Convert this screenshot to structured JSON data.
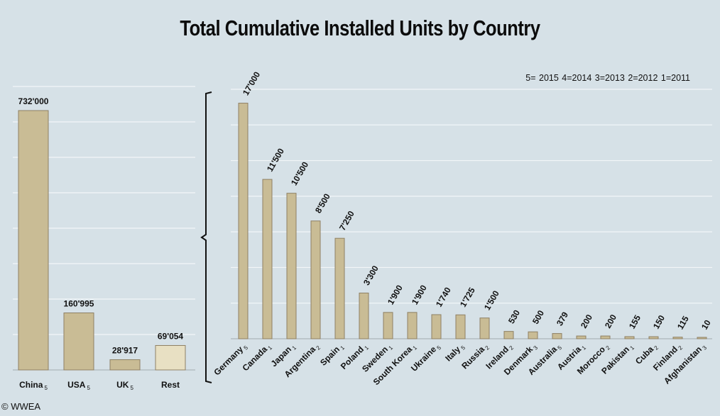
{
  "title": "Total Cumulative Installed Units by Country",
  "legend_text": "5= 2015  4=2014  3=2013  2=2012  1=2011",
  "copyright": "© WWEA",
  "colors": {
    "background": "#d6e1e7",
    "bar": "#c9bc95",
    "bar_border": "#8e8064",
    "bar_rest": "#e8e0c3",
    "gridline": "#f2f6f8"
  },
  "chart_data": [
    {
      "type": "bar",
      "title": "",
      "xlabel": "",
      "ylabel": "",
      "ylim": [
        0,
        800000
      ],
      "grid": true,
      "categories": [
        {
          "name": "China",
          "sub": "5"
        },
        {
          "name": "USA",
          "sub": "5"
        },
        {
          "name": "UK",
          "sub": "5"
        },
        {
          "name": "Rest",
          "sub": ""
        }
      ],
      "values": [
        732000,
        160995,
        28917,
        69054
      ],
      "value_labels": [
        "732'000",
        "160'995",
        "28'917",
        "69'054"
      ]
    },
    {
      "type": "bar",
      "title": "",
      "xlabel": "",
      "ylabel": "",
      "ylim": [
        0,
        18000
      ],
      "grid": true,
      "categories": [
        {
          "name": "Germany",
          "sub": "5"
        },
        {
          "name": "Canada",
          "sub": "1"
        },
        {
          "name": "Japan",
          "sub": "1"
        },
        {
          "name": "Argentina",
          "sub": "2"
        },
        {
          "name": "Spain",
          "sub": "1"
        },
        {
          "name": "Poland",
          "sub": "1"
        },
        {
          "name": "Sweden",
          "sub": "1"
        },
        {
          "name": "South Korea",
          "sub": "1"
        },
        {
          "name": "Ukraine",
          "sub": "5"
        },
        {
          "name": "Italy",
          "sub": "5"
        },
        {
          "name": "Russia",
          "sub": "2"
        },
        {
          "name": "Ireland",
          "sub": "2"
        },
        {
          "name": "Denmark",
          "sub": "3"
        },
        {
          "name": "Australia",
          "sub": "5"
        },
        {
          "name": "Austria",
          "sub": "1"
        },
        {
          "name": "Morocco",
          "sub": "2"
        },
        {
          "name": "Pakistan",
          "sub": "1"
        },
        {
          "name": "Cuba",
          "sub": "2"
        },
        {
          "name": "Finland",
          "sub": "2"
        },
        {
          "name": "Afghanistan",
          "sub": "3"
        }
      ],
      "values": [
        17000,
        11500,
        10500,
        8500,
        7250,
        3300,
        1900,
        1900,
        1740,
        1725,
        1500,
        530,
        500,
        379,
        200,
        200,
        155,
        150,
        115,
        10
      ],
      "value_labels": [
        "17'000",
        "11'500",
        "10'500",
        "8'500",
        "7'250",
        "3'300",
        "1'900",
        "1'900",
        "1'740",
        "1'725",
        "1'500",
        "530",
        "500",
        "379",
        "200",
        "200",
        "155",
        "150",
        "115",
        "10"
      ]
    }
  ]
}
